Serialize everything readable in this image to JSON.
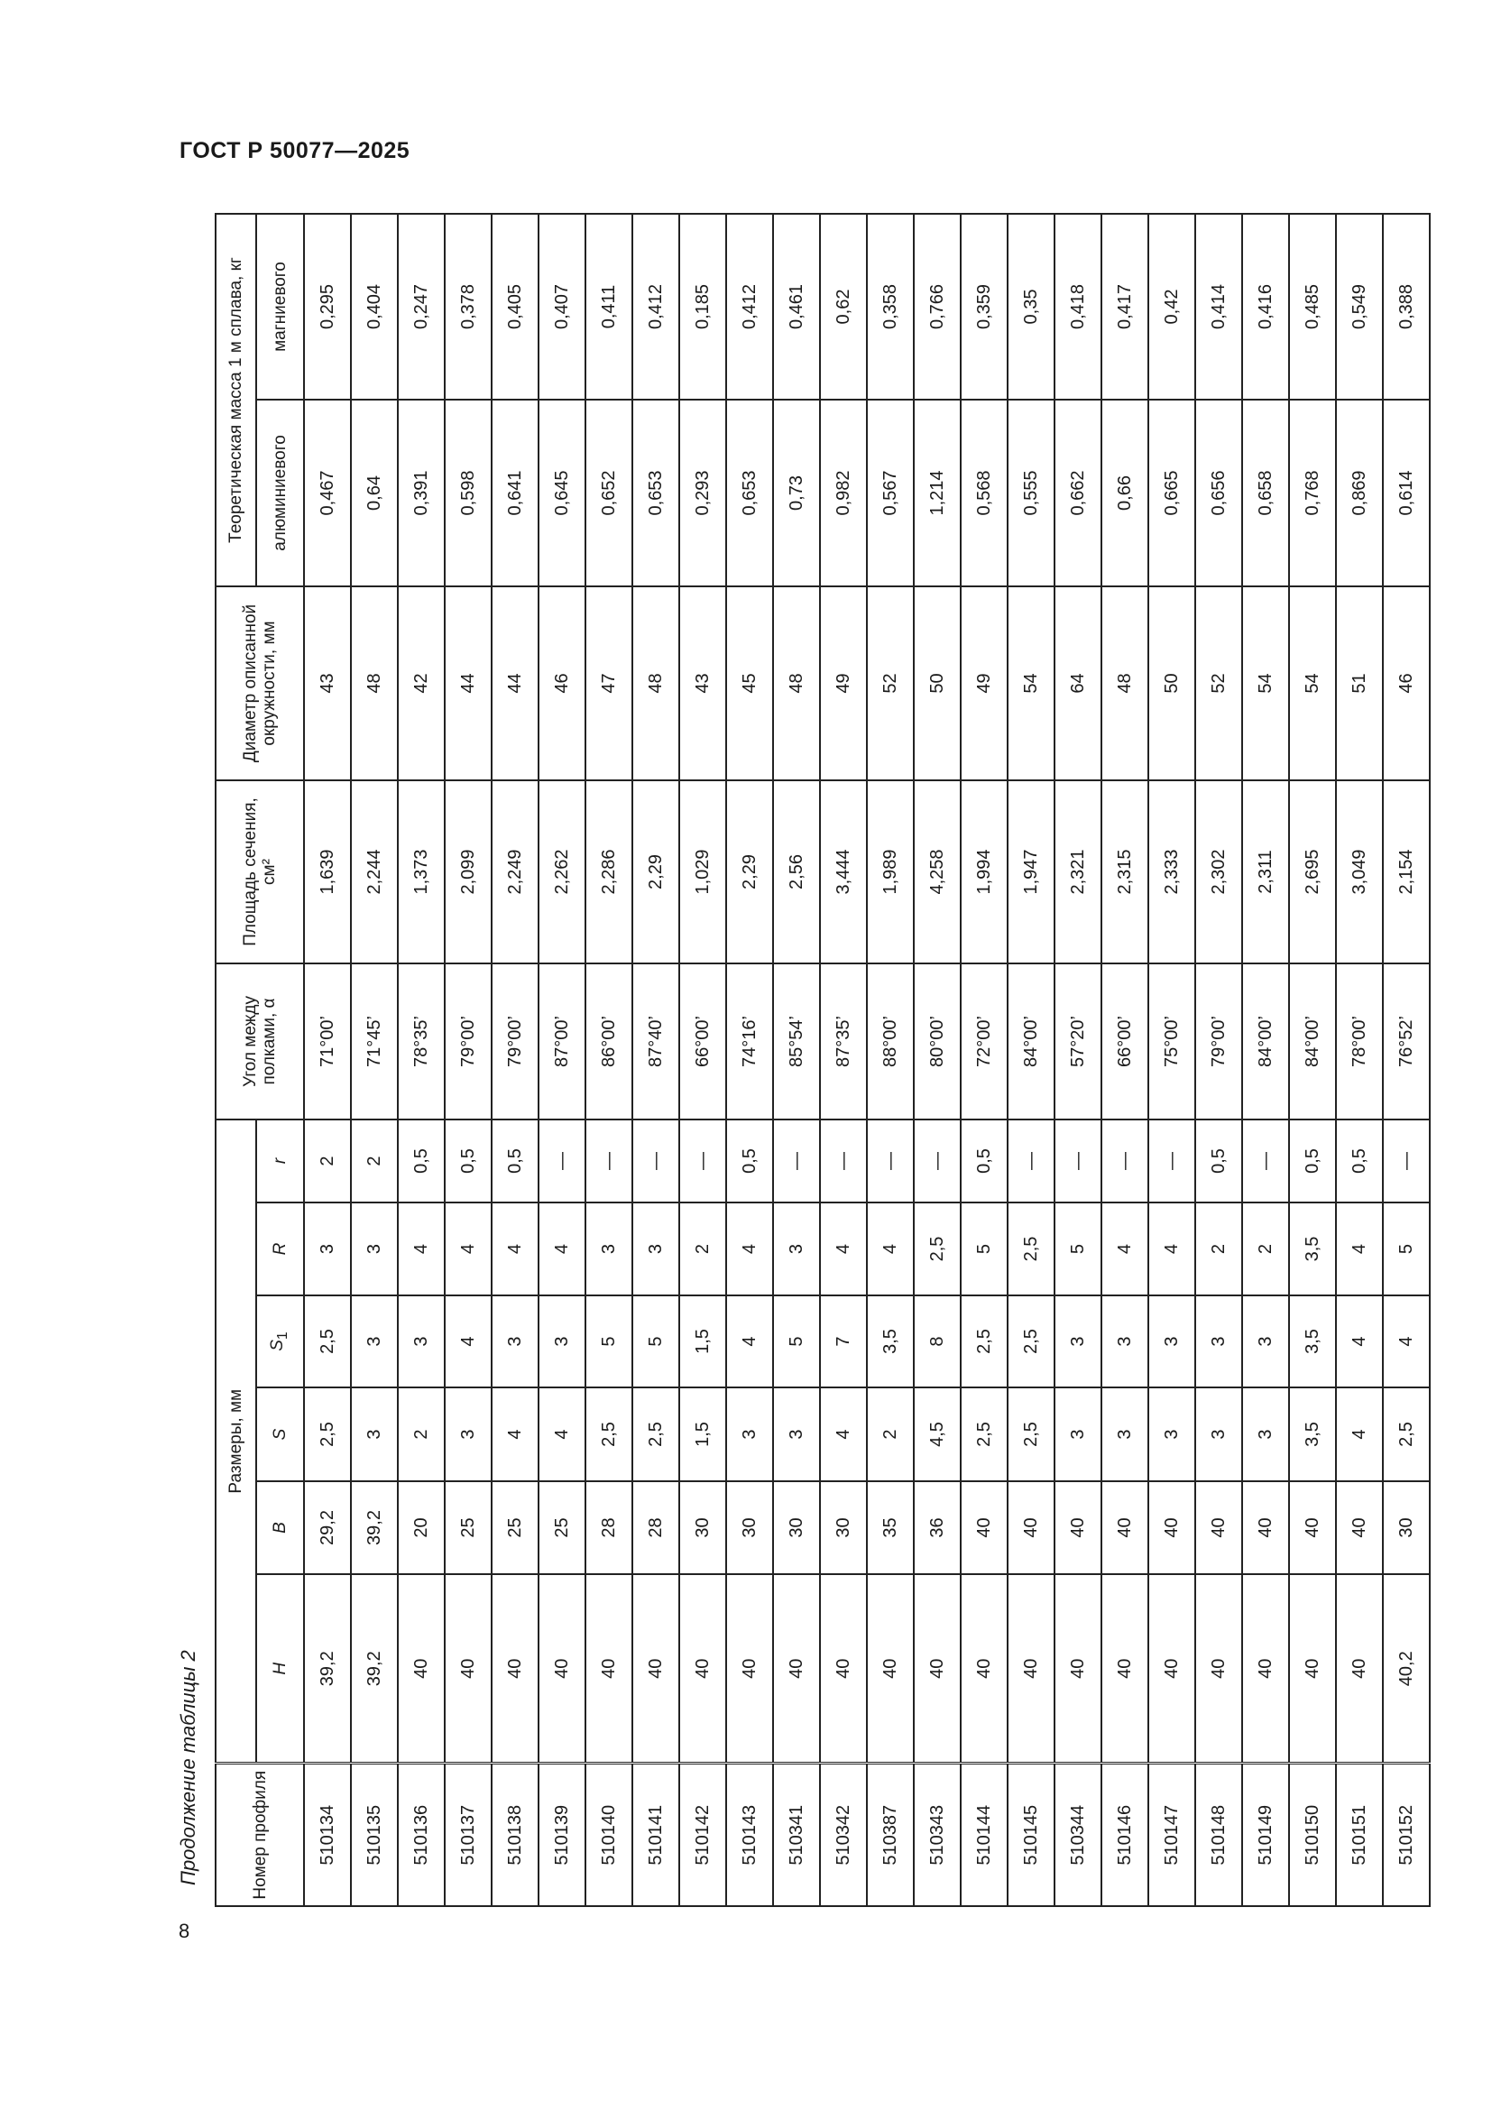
{
  "document": {
    "title": "ГОСТ Р 50077—2025",
    "page_number": "8",
    "caption": "Продолжение таблицы 2"
  },
  "table": {
    "headers": {
      "profile": "Номер профиля",
      "sizes_group": "Размеры, мм",
      "H": "H",
      "B": "B",
      "S": "S",
      "S1": "S",
      "S1_sub": "1",
      "R": "R",
      "r": "r",
      "angle": "Угол между полками, α",
      "area": "Площадь сечения, см²",
      "diameter": "Диаметр описанной окружности, мм",
      "mass_group": "Теоретическая масса 1 м сплава, кг",
      "aluminum": "алюминиевого",
      "magnesium": "магниевого"
    },
    "rows": [
      [
        "510134",
        "39,2",
        "29,2",
        "2,5",
        "2,5",
        "3",
        "2",
        "71°00’",
        "1,639",
        "43",
        "0,467",
        "0,295"
      ],
      [
        "510135",
        "39,2",
        "39,2",
        "3",
        "3",
        "3",
        "2",
        "71°45’",
        "2,244",
        "48",
        "0,64",
        "0,404"
      ],
      [
        "510136",
        "40",
        "20",
        "2",
        "3",
        "4",
        "0,5",
        "78°35’",
        "1,373",
        "42",
        "0,391",
        "0,247"
      ],
      [
        "510137",
        "40",
        "25",
        "3",
        "4",
        "4",
        "0,5",
        "79°00’",
        "2,099",
        "44",
        "0,598",
        "0,378"
      ],
      [
        "510138",
        "40",
        "25",
        "4",
        "3",
        "4",
        "0,5",
        "79°00’",
        "2,249",
        "44",
        "0,641",
        "0,405"
      ],
      [
        "510139",
        "40",
        "25",
        "4",
        "3",
        "4",
        "—",
        "87°00’",
        "2,262",
        "46",
        "0,645",
        "0,407"
      ],
      [
        "510140",
        "40",
        "28",
        "2,5",
        "5",
        "3",
        "—",
        "86°00’",
        "2,286",
        "47",
        "0,652",
        "0,411"
      ],
      [
        "510141",
        "40",
        "28",
        "2,5",
        "5",
        "3",
        "—",
        "87°40’",
        "2,29",
        "48",
        "0,653",
        "0,412"
      ],
      [
        "510142",
        "40",
        "30",
        "1,5",
        "1,5",
        "2",
        "—",
        "66°00’",
        "1,029",
        "43",
        "0,293",
        "0,185"
      ],
      [
        "510143",
        "40",
        "30",
        "3",
        "4",
        "4",
        "0,5",
        "74°16’",
        "2,29",
        "45",
        "0,653",
        "0,412"
      ],
      [
        "510341",
        "40",
        "30",
        "3",
        "5",
        "3",
        "—",
        "85°54’",
        "2,56",
        "48",
        "0,73",
        "0,461"
      ],
      [
        "510342",
        "40",
        "30",
        "4",
        "7",
        "4",
        "—",
        "87°35’",
        "3,444",
        "49",
        "0,982",
        "0,62"
      ],
      [
        "510387",
        "40",
        "35",
        "2",
        "3,5",
        "4",
        "—",
        "88°00’",
        "1,989",
        "52",
        "0,567",
        "0,358"
      ],
      [
        "510343",
        "40",
        "36",
        "4,5",
        "8",
        "2,5",
        "—",
        "80°00’",
        "4,258",
        "50",
        "1,214",
        "0,766"
      ],
      [
        "510144",
        "40",
        "40",
        "2,5",
        "2,5",
        "5",
        "0,5",
        "72°00’",
        "1,994",
        "49",
        "0,568",
        "0,359"
      ],
      [
        "510145",
        "40",
        "40",
        "2,5",
        "2,5",
        "2,5",
        "—",
        "84°00’",
        "1,947",
        "54",
        "0,555",
        "0,35"
      ],
      [
        "510344",
        "40",
        "40",
        "3",
        "3",
        "5",
        "—",
        "57°20’",
        "2,321",
        "64",
        "0,662",
        "0,418"
      ],
      [
        "510146",
        "40",
        "40",
        "3",
        "3",
        "4",
        "—",
        "66°00’",
        "2,315",
        "48",
        "0,66",
        "0,417"
      ],
      [
        "510147",
        "40",
        "40",
        "3",
        "3",
        "4",
        "—",
        "75°00’",
        "2,333",
        "50",
        "0,665",
        "0,42"
      ],
      [
        "510148",
        "40",
        "40",
        "3",
        "3",
        "2",
        "0,5",
        "79°00’",
        "2,302",
        "52",
        "0,656",
        "0,414"
      ],
      [
        "510149",
        "40",
        "40",
        "3",
        "3",
        "2",
        "—",
        "84°00’",
        "2,311",
        "54",
        "0,658",
        "0,416"
      ],
      [
        "510150",
        "40",
        "40",
        "3,5",
        "3,5",
        "3,5",
        "0,5",
        "84°00’",
        "2,695",
        "54",
        "0,768",
        "0,485"
      ],
      [
        "510151",
        "40",
        "40",
        "4",
        "4",
        "4",
        "0,5",
        "78°00’",
        "3,049",
        "51",
        "0,869",
        "0,549"
      ],
      [
        "510152",
        "40,2",
        "30",
        "2,5",
        "4",
        "5",
        "—",
        "76°52’",
        "2,154",
        "46",
        "0,614",
        "0,388"
      ]
    ]
  }
}
